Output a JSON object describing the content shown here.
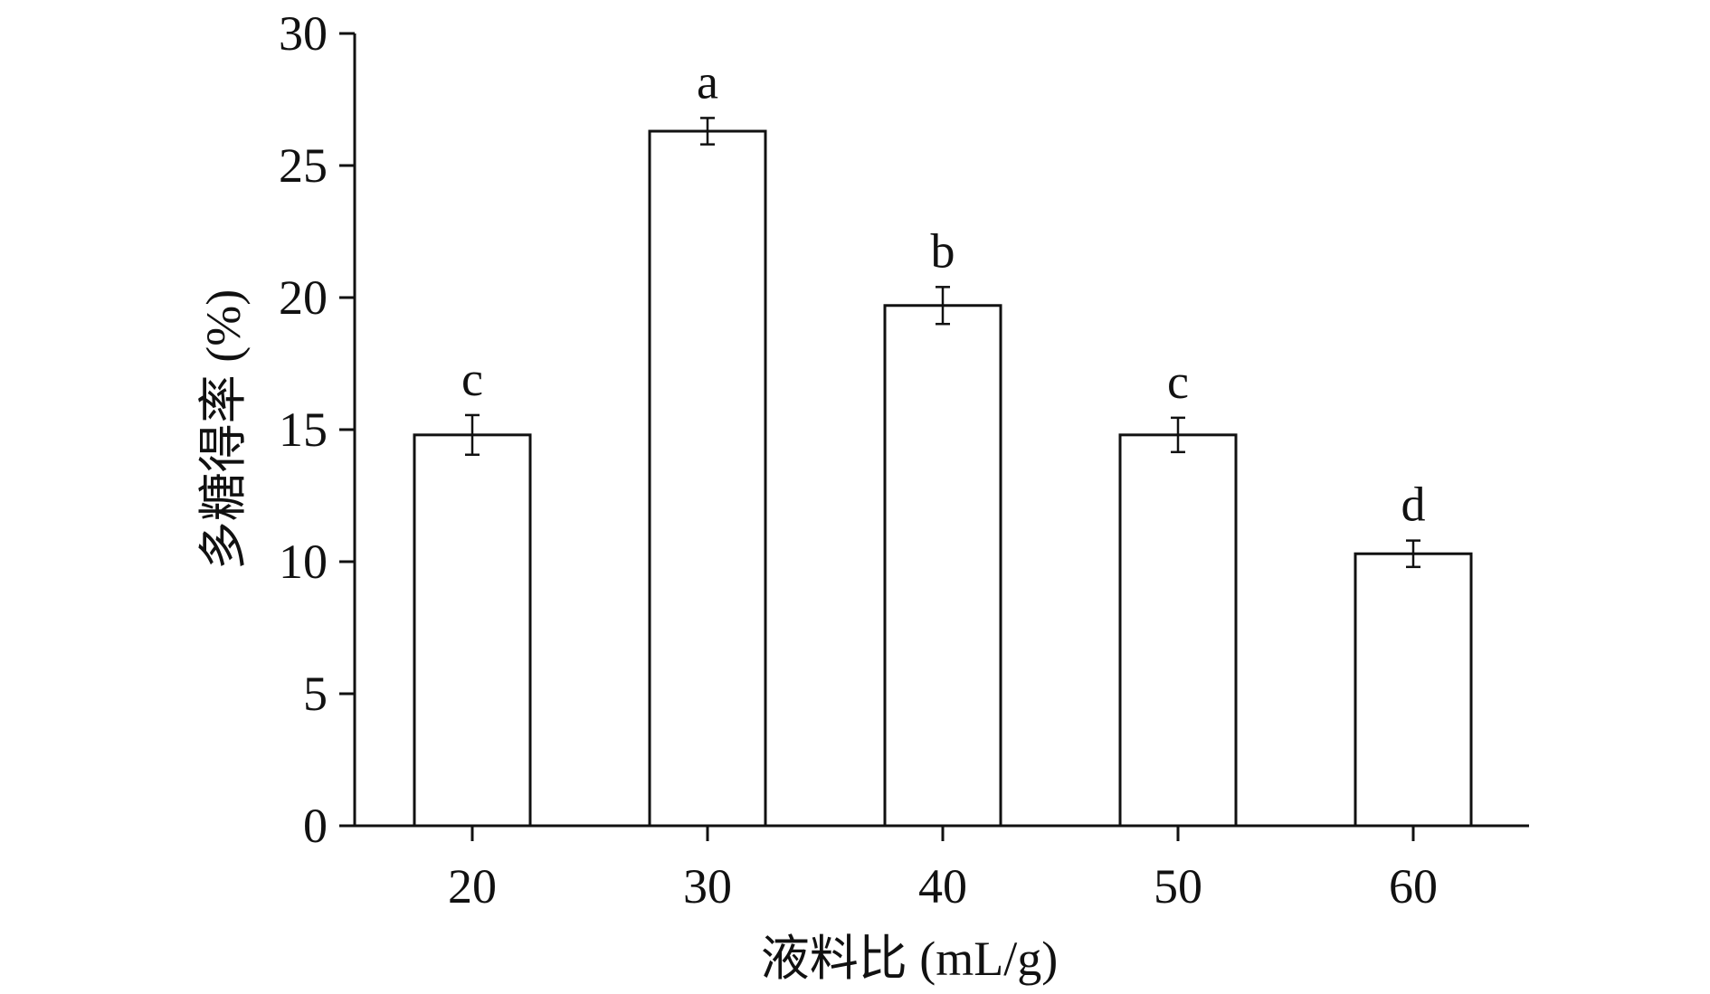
{
  "chart_data": {
    "type": "bar",
    "title": "",
    "xlabel": "液料比 (mL/g)",
    "ylabel": "多糖得率 (%)",
    "categories": [
      "20",
      "30",
      "40",
      "50",
      "60"
    ],
    "values": [
      14.8,
      26.3,
      19.7,
      14.8,
      10.3
    ],
    "error": [
      0.75,
      0.5,
      0.7,
      0.65,
      0.5
    ],
    "significance_labels": [
      "c",
      "a",
      "b",
      "c",
      "d"
    ],
    "ylim": [
      0,
      30
    ],
    "yticks": [
      0,
      5,
      10,
      15,
      20,
      25,
      30
    ],
    "grid": false,
    "legend": "none"
  },
  "colors": {
    "bar_fill": "#ffffff",
    "bar_stroke": "#111111",
    "axis": "#111111"
  }
}
